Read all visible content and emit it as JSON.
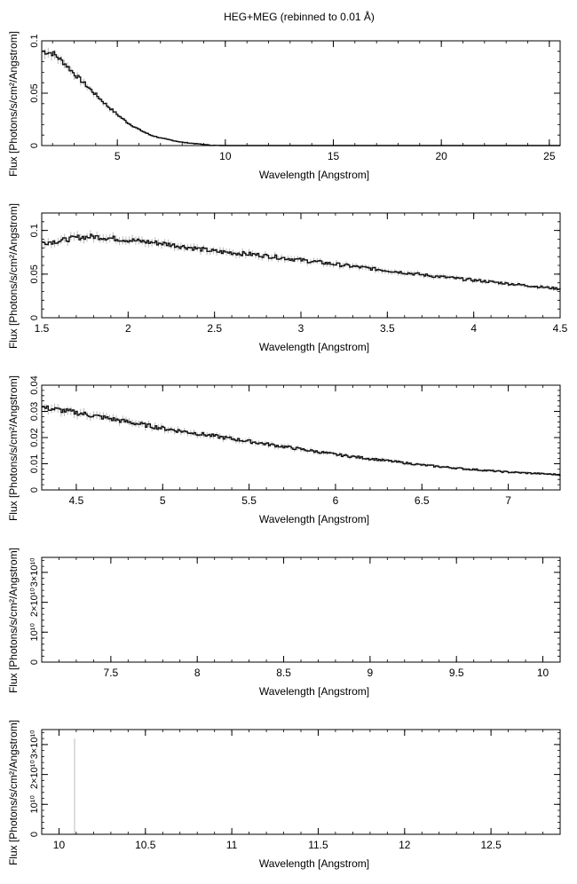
{
  "figure": {
    "title": "HEG+MEG (rebinned to 0.01 Å)",
    "colors": {
      "axis": "#000000",
      "data": "#111111",
      "errorbar": "#bbbbbb"
    }
  },
  "chart_data": [
    {
      "type": "line",
      "xlabel": "Wavelength [Angstrom]",
      "ylabel": "Flux [Photons/s/cm²/Angstrom]",
      "xlim": [
        1.5,
        25.5
      ],
      "ylim": [
        0,
        0.1
      ],
      "xticks": [
        5,
        10,
        15,
        20,
        25
      ],
      "xtick_labels": [
        "5",
        "10",
        "15",
        "20",
        "25"
      ],
      "yticks": [
        0,
        0.05,
        0.1
      ],
      "ytick_labels": [
        "0",
        "0.05",
        "0.1"
      ],
      "series": [
        {
          "x": [
            1.55,
            2,
            2.5,
            3,
            3.5,
            4,
            4.5,
            5,
            5.5,
            6,
            6.5,
            7,
            7.5,
            8,
            8.5,
            9,
            9.3,
            10,
            12,
            15,
            18,
            20,
            22,
            25.5
          ],
          "y": [
            0.09,
            0.088,
            0.079,
            0.068,
            0.058,
            0.048,
            0.038,
            0.029,
            0.021,
            0.015,
            0.01,
            0.007,
            0.005,
            0.003,
            0.002,
            0.001,
            0.0002,
            0,
            0,
            0,
            0,
            0,
            0,
            0
          ]
        }
      ]
    },
    {
      "type": "line",
      "xlabel": "Wavelength [Angstrom]",
      "ylabel": "Flux [Photons/s/cm²/Angstrom]",
      "xlim": [
        1.5,
        4.5
      ],
      "ylim": [
        0,
        0.12
      ],
      "xticks": [
        1.5,
        2,
        2.5,
        3,
        3.5,
        4,
        4.5
      ],
      "xtick_labels": [
        "1.5",
        "2",
        "2.5",
        "3",
        "3.5",
        "4",
        "4.5"
      ],
      "yticks": [
        0,
        0.05,
        0.1
      ],
      "ytick_labels": [
        "0",
        "0.05",
        "0.1"
      ],
      "series": [
        {
          "x": [
            1.5,
            1.6,
            1.7,
            1.8,
            1.9,
            2.0,
            2.1,
            2.2,
            2.3,
            2.4,
            2.5,
            2.75,
            3.0,
            3.25,
            3.5,
            3.75,
            4.0,
            4.25,
            4.5
          ],
          "y": [
            0.086,
            0.088,
            0.092,
            0.093,
            0.091,
            0.089,
            0.087,
            0.085,
            0.082,
            0.079,
            0.076,
            0.072,
            0.066,
            0.06,
            0.054,
            0.048,
            0.043,
            0.038,
            0.033
          ]
        }
      ]
    },
    {
      "type": "line",
      "xlabel": "Wavelength [Angstrom]",
      "ylabel": "Flux [Photons/s/cm²/Angstrom]",
      "xlim": [
        4.3,
        7.3
      ],
      "ylim": [
        0,
        0.04
      ],
      "xticks": [
        4.5,
        5,
        5.5,
        6,
        6.5,
        7
      ],
      "xtick_labels": [
        "4.5",
        "5",
        "5.5",
        "6",
        "6.5",
        "7"
      ],
      "yticks": [
        0,
        0.01,
        0.02,
        0.03,
        0.04
      ],
      "ytick_labels": [
        "0",
        "0.01",
        "0.02",
        "0.03",
        "0.04"
      ],
      "series": [
        {
          "x": [
            4.3,
            4.5,
            4.75,
            5.0,
            5.25,
            5.5,
            5.75,
            6.0,
            6.25,
            6.5,
            6.75,
            7.0,
            7.3
          ],
          "y": [
            0.0315,
            0.0295,
            0.0265,
            0.0235,
            0.021,
            0.0185,
            0.016,
            0.0135,
            0.0115,
            0.0095,
            0.008,
            0.0068,
            0.0058
          ]
        }
      ]
    },
    {
      "type": "line",
      "xlabel": "Wavelength [Angstrom]",
      "ylabel": "Flux [Photons/s/cm²/Angstrom]",
      "xlim": [
        7.1,
        10.1
      ],
      "ylim": [
        0,
        35000000000.0
      ],
      "xticks": [
        7.5,
        8,
        8.5,
        9,
        9.5,
        10
      ],
      "xtick_labels": [
        "7.5",
        "8",
        "8.5",
        "9",
        "9.5",
        "10"
      ],
      "yticks": [
        0,
        10000000000.0,
        20000000000.0,
        30000000000.0
      ],
      "ytick_labels": [
        "0",
        "10¹⁰",
        "2×10¹⁰",
        "3×10¹⁰"
      ],
      "series": []
    },
    {
      "type": "line",
      "xlabel": "Wavelength [Angstrom]",
      "ylabel": "Flux [Photons/s/cm²/Angstrom]",
      "xlim": [
        9.9,
        12.9
      ],
      "ylim": [
        0,
        35000000000.0
      ],
      "xticks": [
        10,
        10.5,
        11,
        11.5,
        12,
        12.5
      ],
      "xtick_labels": [
        "10",
        "10.5",
        "11",
        "11.5",
        "12",
        "12.5"
      ],
      "yticks": [
        0,
        10000000000.0,
        20000000000.0,
        30000000000.0
      ],
      "ytick_labels": [
        "0",
        "10¹⁰",
        "2×10¹⁰",
        "3×10¹⁰"
      ],
      "series": [],
      "errorbars": [
        {
          "x": 10.09,
          "lo": 0,
          "hi": 32000000000.0
        }
      ]
    }
  ]
}
